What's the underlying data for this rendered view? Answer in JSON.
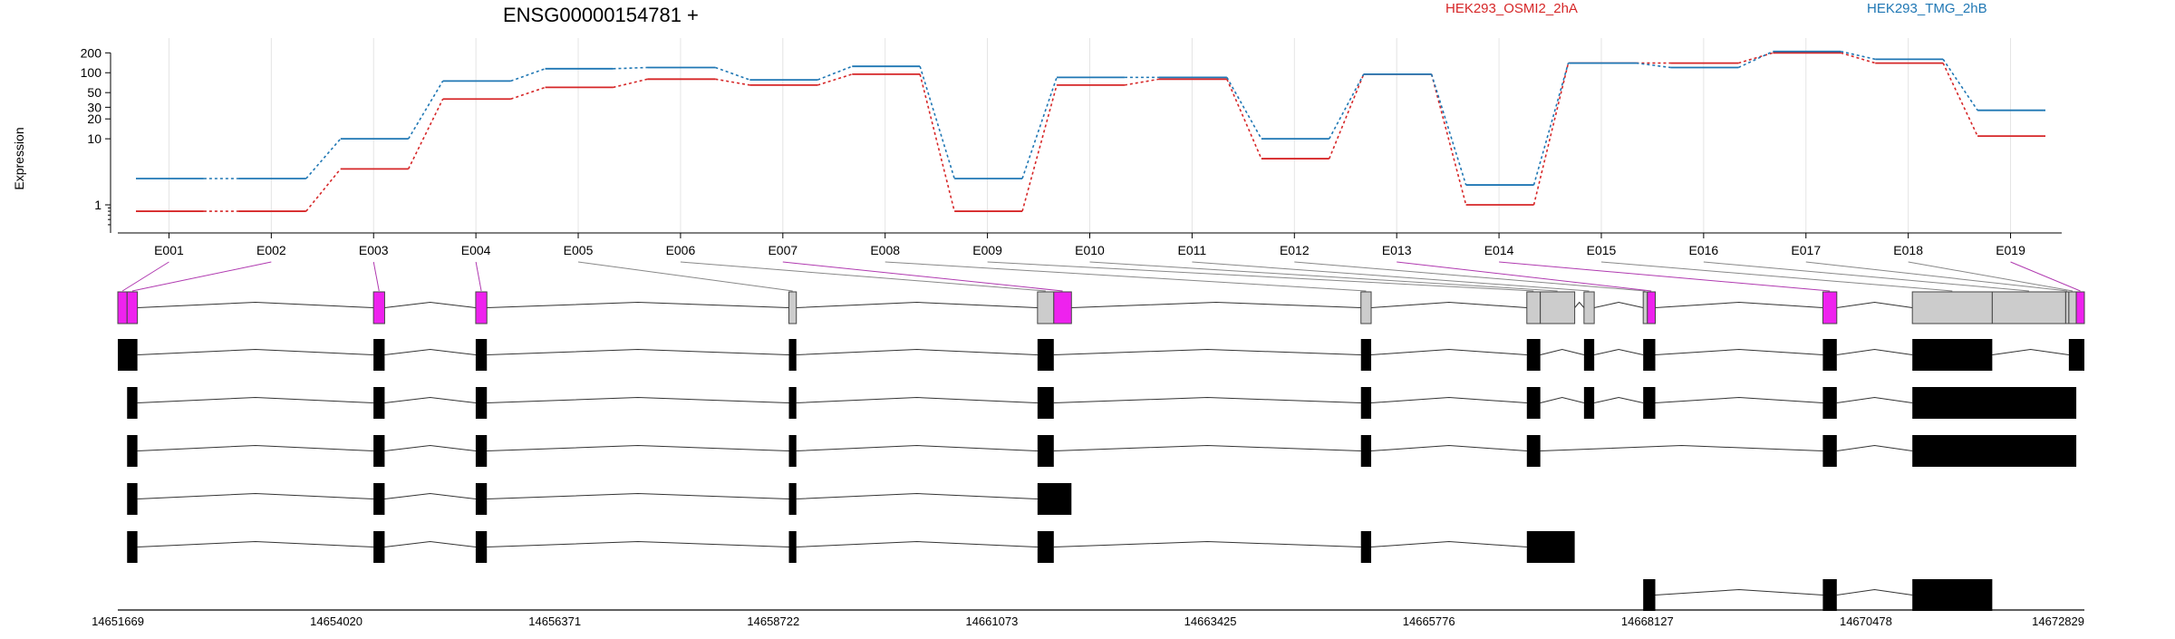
{
  "chart_data": {
    "type": "line",
    "title": "ENSG00000154781 +",
    "ylabel": "Expression",
    "y_scale": "log",
    "y_ticks": [
      {
        "value": 1,
        "label": "1"
      },
      {
        "value": 10,
        "label": "10"
      },
      {
        "value": 20,
        "label": "20"
      },
      {
        "value": 30,
        "label": "30"
      },
      {
        "value": 50,
        "label": "50"
      },
      {
        "value": 100,
        "label": "100"
      },
      {
        "value": 200,
        "label": "200"
      }
    ],
    "ylim": [
      0.4,
      260
    ],
    "grid": "vertical",
    "legend_placement": "top-right",
    "categories": [
      "E001",
      "E002",
      "E003",
      "E004",
      "E005",
      "E006",
      "E007",
      "E008",
      "E009",
      "E010",
      "E011",
      "E012",
      "E013",
      "E014",
      "E015",
      "E016",
      "E017",
      "E018",
      "E019"
    ],
    "series": [
      {
        "name": "HEK293_OSMI2_2hA",
        "color": "#d62728",
        "values": [
          0.8,
          0.8,
          3.5,
          40,
          60,
          80,
          65,
          95,
          0.8,
          65,
          80,
          5,
          95,
          1.0,
          140,
          140,
          200,
          140,
          11
        ]
      },
      {
        "name": "HEK293_TMG_2hB",
        "color": "#1f77b4",
        "values": [
          2.5,
          2.5,
          10,
          75,
          115,
          120,
          78,
          125,
          2.5,
          85,
          85,
          10,
          95,
          2.0,
          140,
          120,
          210,
          160,
          27
        ]
      }
    ],
    "gene_model": {
      "coordinates": [
        "14651669",
        "14654020",
        "14656371",
        "14658722",
        "14661073",
        "14663425",
        "14665776",
        "14668127",
        "14670478",
        "14672829"
      ],
      "coord_start": 14651669,
      "coord_end": 14672829,
      "exons": [
        {
          "id": "E001",
          "start": 14651669,
          "end": 14651769,
          "highlight": true
        },
        {
          "id": "E002",
          "start": 14651769,
          "end": 14651880,
          "highlight": true
        },
        {
          "id": "E003",
          "start": 14654420,
          "end": 14654540,
          "highlight": true
        },
        {
          "id": "E004",
          "start": 14655520,
          "end": 14655640,
          "highlight": true
        },
        {
          "id": "E005",
          "start": 14658890,
          "end": 14658970,
          "highlight": false
        },
        {
          "id": "E006",
          "start": 14661565,
          "end": 14661740,
          "highlight": false
        },
        {
          "id": "E007",
          "start": 14661740,
          "end": 14661930,
          "highlight": true
        },
        {
          "id": "E008",
          "start": 14665045,
          "end": 14665155,
          "highlight": false
        },
        {
          "id": "E009",
          "start": 14666830,
          "end": 14666975,
          "highlight": false
        },
        {
          "id": "E010",
          "start": 14666975,
          "end": 14667345,
          "highlight": false
        },
        {
          "id": "E011",
          "start": 14667445,
          "end": 14667555,
          "highlight": false
        },
        {
          "id": "E012",
          "start": 14668082,
          "end": 14668127,
          "highlight": false
        },
        {
          "id": "E013",
          "start": 14668127,
          "end": 14668212,
          "highlight": true
        },
        {
          "id": "E014",
          "start": 14670015,
          "end": 14670165,
          "highlight": true
        },
        {
          "id": "E015",
          "start": 14670978,
          "end": 14671838,
          "highlight": false
        },
        {
          "id": "E016",
          "start": 14671838,
          "end": 14672628,
          "highlight": false
        },
        {
          "id": "E017",
          "start": 14672628,
          "end": 14672662,
          "highlight": false
        },
        {
          "id": "E018",
          "start": 14672662,
          "end": 14672742,
          "highlight": false
        },
        {
          "id": "E019",
          "start": 14672742,
          "end": 14672829,
          "highlight": true
        }
      ],
      "transcripts": [
        [
          [
            14651669,
            14651880
          ],
          [
            14654420,
            14654540
          ],
          [
            14655520,
            14655640
          ],
          [
            14658890,
            14658970
          ],
          [
            14661565,
            14661740
          ],
          [
            14665045,
            14665155
          ],
          [
            14666830,
            14666975
          ],
          [
            14667445,
            14667555
          ],
          [
            14668082,
            14668212
          ],
          [
            14670015,
            14670165
          ],
          [
            14670978,
            14671838
          ],
          [
            14672662,
            14672829
          ]
        ],
        [
          [
            14651769,
            14651880
          ],
          [
            14654420,
            14654540
          ],
          [
            14655520,
            14655640
          ],
          [
            14658890,
            14658970
          ],
          [
            14661565,
            14661740
          ],
          [
            14665045,
            14665155
          ],
          [
            14666830,
            14666975
          ],
          [
            14667445,
            14667555
          ],
          [
            14668082,
            14668212
          ],
          [
            14670015,
            14670165
          ],
          [
            14670978,
            14672742
          ]
        ],
        [
          [
            14651769,
            14651880
          ],
          [
            14654420,
            14654540
          ],
          [
            14655520,
            14655640
          ],
          [
            14658890,
            14658970
          ],
          [
            14661565,
            14661740
          ],
          [
            14665045,
            14665155
          ],
          [
            14666830,
            14666975
          ],
          [
            14670015,
            14670165
          ],
          [
            14670978,
            14672742
          ]
        ],
        [
          [
            14651769,
            14651880
          ],
          [
            14654420,
            14654540
          ],
          [
            14655520,
            14655640
          ],
          [
            14658890,
            14658970
          ],
          [
            14661565,
            14661930
          ]
        ],
        [
          [
            14651769,
            14651880
          ],
          [
            14654420,
            14654540
          ],
          [
            14655520,
            14655640
          ],
          [
            14658890,
            14658970
          ],
          [
            14661565,
            14661740
          ],
          [
            14665045,
            14665155
          ],
          [
            14666830,
            14667345
          ]
        ],
        [
          [
            14668082,
            14668212
          ],
          [
            14670015,
            14670165
          ],
          [
            14670978,
            14671838
          ]
        ]
      ]
    }
  }
}
